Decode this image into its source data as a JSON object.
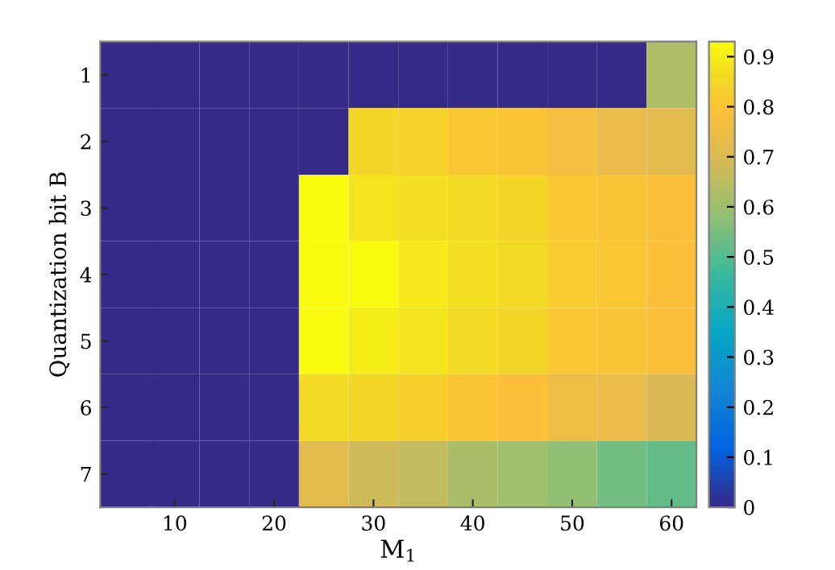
{
  "chart_data": {
    "type": "heatmap",
    "xlabel": "M$_{1}$",
    "ylabel": "Quantization bit B",
    "x": [
      5,
      10,
      15,
      20,
      25,
      30,
      35,
      40,
      45,
      50,
      55,
      60
    ],
    "xlim": [
      2.5,
      62.5
    ],
    "xticks": [
      10,
      20,
      30,
      40,
      50,
      60
    ],
    "y_categories": [
      "1",
      "2",
      "3",
      "4",
      "5",
      "6",
      "7"
    ],
    "cells": [
      [
        0,
        0,
        0,
        0,
        0,
        0,
        0,
        0,
        0,
        0,
        0,
        0.63
      ],
      [
        0,
        0,
        0,
        0,
        0,
        0.85,
        0.84,
        0.81,
        0.8,
        0.77,
        0.74,
        0.72
      ],
      [
        0,
        0,
        0,
        0,
        0.93,
        0.88,
        0.87,
        0.86,
        0.85,
        0.81,
        0.8,
        0.79
      ],
      [
        0,
        0,
        0,
        0,
        0.93,
        0.93,
        0.89,
        0.87,
        0.86,
        0.82,
        0.81,
        0.79
      ],
      [
        0,
        0,
        0,
        0,
        0.93,
        0.9,
        0.88,
        0.86,
        0.85,
        0.81,
        0.8,
        0.79
      ],
      [
        0,
        0,
        0,
        0,
        0.86,
        0.85,
        0.83,
        0.8,
        0.79,
        0.75,
        0.74,
        0.7
      ],
      [
        0,
        0,
        0,
        0,
        0.72,
        0.68,
        0.66,
        0.62,
        0.6,
        0.58,
        0.54,
        0.52
      ]
    ],
    "clim": [
      0,
      0.93
    ],
    "cticks": [
      0,
      0.1,
      0.2,
      0.3,
      0.4,
      0.5,
      0.6,
      0.7,
      0.8,
      0.9
    ]
  }
}
